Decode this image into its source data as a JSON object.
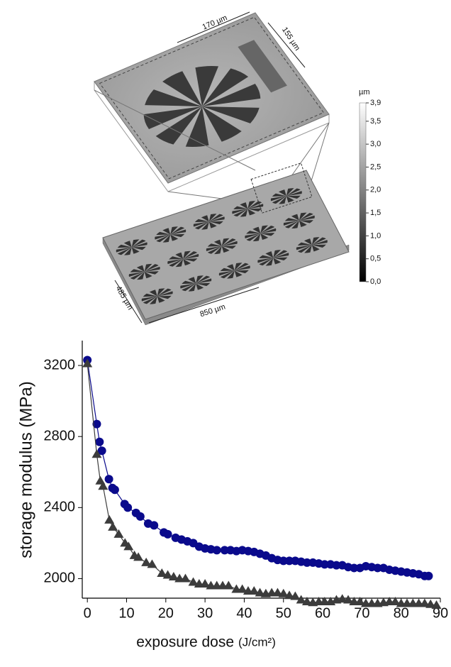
{
  "image": {
    "top_width_label": "170 µm",
    "top_depth_label": "155 µm",
    "bottom_depth_label": "485 µm",
    "bottom_width_label": "850 µm",
    "colorbar": {
      "unit": "µm",
      "lim": [
        0,
        3.9
      ],
      "ticks": [
        {
          "value": 3.9,
          "label": "3,9"
        },
        {
          "value": 3.5,
          "label": "3,5"
        },
        {
          "value": 3.0,
          "label": "3,0"
        },
        {
          "value": 2.5,
          "label": "2,5"
        },
        {
          "value": 2.0,
          "label": "2,0"
        },
        {
          "value": 1.5,
          "label": "1,5"
        },
        {
          "value": 1.0,
          "label": "1,0"
        },
        {
          "value": 0.5,
          "label": "0,5"
        },
        {
          "value": 0.0,
          "label": "0,0"
        }
      ]
    }
  },
  "chart_data": {
    "type": "scatter",
    "xlabel": "exposure dose",
    "xlabel_unit": "(J/cm²)",
    "ylabel": "storage modulus (MPa)",
    "xlim": [
      -1.3,
      90
    ],
    "ylim": [
      1890,
      3340
    ],
    "xticks": [
      0,
      10,
      20,
      30,
      40,
      50,
      60,
      70,
      80,
      90
    ],
    "yticks": [
      2000,
      2400,
      2800,
      3200
    ],
    "series": [
      {
        "color": "#0a0a8c",
        "marker": "circle",
        "x": [
          0,
          2.4,
          3.1,
          3.7,
          5.5,
          6.4,
          7,
          9.5,
          10.3,
          12.4,
          13.5,
          15.5,
          17,
          19.5,
          20.5,
          22.5,
          24,
          25.5,
          27,
          28.5,
          30,
          31.5,
          33,
          35,
          36.5,
          38,
          39.5,
          41,
          42.5,
          44,
          45.5,
          47,
          48.5,
          50,
          51.5,
          53,
          54.5,
          56,
          57.5,
          59,
          60.5,
          62,
          63.5,
          65,
          66.5,
          68,
          69.5,
          71,
          72.5,
          74,
          75.5,
          77,
          78.5,
          80,
          81.5,
          83,
          84.5,
          86,
          87
        ],
        "values": [
          3230,
          2870,
          2770,
          2720,
          2560,
          2510,
          2500,
          2420,
          2400,
          2370,
          2350,
          2310,
          2300,
          2260,
          2250,
          2230,
          2220,
          2210,
          2200,
          2180,
          2170,
          2165,
          2160,
          2160,
          2160,
          2155,
          2160,
          2155,
          2150,
          2140,
          2130,
          2115,
          2105,
          2100,
          2100,
          2100,
          2095,
          2090,
          2090,
          2085,
          2080,
          2080,
          2075,
          2075,
          2065,
          2060,
          2060,
          2070,
          2065,
          2060,
          2060,
          2050,
          2045,
          2040,
          2035,
          2030,
          2025,
          2015,
          2015
        ]
      },
      {
        "color": "#3c3c3c",
        "marker": "triangle",
        "x": [
          0,
          2.4,
          3.3,
          4,
          5.6,
          6.5,
          8,
          9.6,
          10.5,
          12,
          13,
          15,
          16.5,
          19,
          20.5,
          22,
          23.5,
          25,
          27,
          28.5,
          30,
          31.5,
          33,
          34.5,
          36,
          38,
          39.5,
          41,
          42.5,
          44,
          45.5,
          47,
          48.5,
          50,
          51.5,
          53,
          54.5,
          56,
          57.5,
          59,
          60.5,
          62,
          63.5,
          65,
          66.5,
          68,
          69.5,
          71,
          72.5,
          74,
          75.5,
          77,
          78.5,
          80,
          81.5,
          83,
          84.5,
          86,
          87.5,
          89
        ],
        "values": [
          3210,
          2700,
          2550,
          2520,
          2330,
          2290,
          2250,
          2200,
          2180,
          2130,
          2120,
          2090,
          2080,
          2030,
          2020,
          2010,
          2000,
          2000,
          1980,
          1970,
          1970,
          1960,
          1960,
          1960,
          1960,
          1940,
          1940,
          1930,
          1930,
          1920,
          1915,
          1920,
          1920,
          1915,
          1905,
          1900,
          1880,
          1870,
          1865,
          1870,
          1870,
          1870,
          1880,
          1885,
          1880,
          1870,
          1870,
          1860,
          1860,
          1860,
          1865,
          1870,
          1870,
          1860,
          1860,
          1860,
          1860,
          1860,
          1855,
          1850
        ]
      }
    ]
  }
}
